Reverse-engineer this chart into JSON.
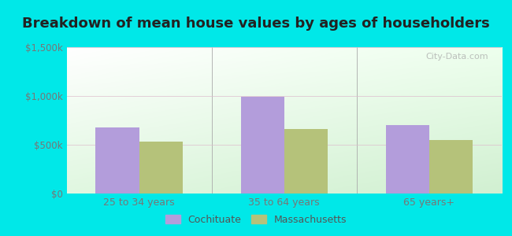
{
  "title": "Breakdown of mean house values by ages of householders",
  "categories": [
    "25 to 34 years",
    "35 to 64 years",
    "65 years+"
  ],
  "cochituate_values": [
    680000,
    990000,
    700000
  ],
  "massachusetts_values": [
    530000,
    660000,
    545000
  ],
  "cochituate_color": "#b39ddb",
  "massachusetts_color": "#b5c27a",
  "ylim": [
    0,
    1500000
  ],
  "yticks": [
    0,
    500000,
    1000000,
    1500000
  ],
  "ytick_labels": [
    "$0",
    "$500k",
    "$1,000k",
    "$1,500k"
  ],
  "background_outer": "#00e8e8",
  "title_fontsize": 13,
  "bar_width": 0.3,
  "legend_labels": [
    "Cochituate",
    "Massachusetts"
  ],
  "watermark": "City-Data.com",
  "tick_color": "#777777",
  "title_color": "#222222"
}
